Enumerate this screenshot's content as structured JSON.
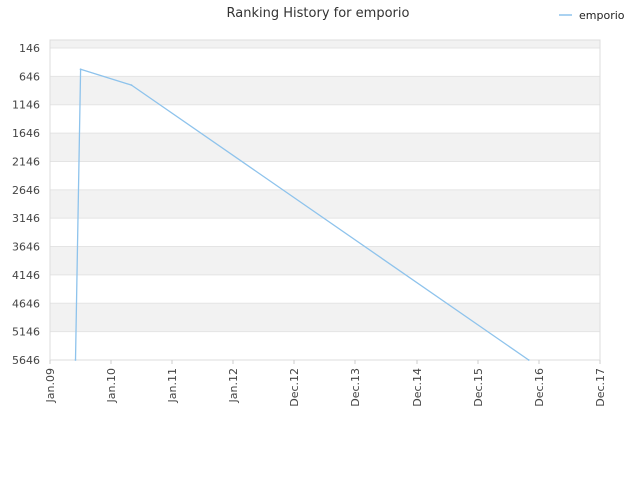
{
  "chart_data": {
    "type": "line",
    "title": "Ranking History for emporio",
    "xlabel": "",
    "ylabel": "",
    "y_inverted": true,
    "ylim": [
      146,
      5646
    ],
    "y_ticks": [
      146,
      646,
      1146,
      1646,
      2146,
      2646,
      3146,
      3646,
      4146,
      4646,
      5146,
      5646
    ],
    "x_ticks": [
      "Jan.09",
      "Jan.10",
      "Jan.11",
      "Jan.12",
      "Dec.12",
      "Dec.13",
      "Dec.14",
      "Dec.15",
      "Dec.16",
      "Dec.17"
    ],
    "legend": {
      "position": "top-right",
      "entries": [
        "emporio"
      ]
    },
    "grid": true,
    "colors": {
      "series": "#8ec3ec",
      "band": "#f2f2f2",
      "plot_bg": "#ffffff",
      "border": "#dddddd"
    },
    "series": [
      {
        "name": "emporio",
        "x": [
          "2009-06",
          "2009-07",
          "2010-05",
          "2016-11"
        ],
        "values": [
          5646,
          520,
          800,
          5646
        ]
      }
    ]
  }
}
